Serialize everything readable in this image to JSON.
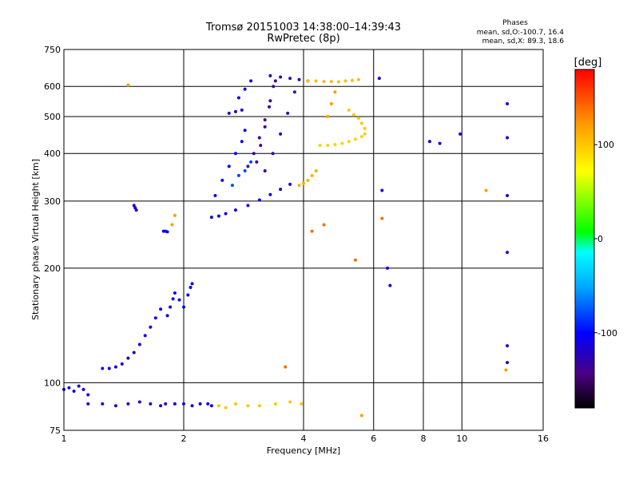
{
  "chart_data": {
    "type": "scatter",
    "title": "Tromsø 20151003 14:38:00–14:39:43",
    "subtitle": "RwPretec (8p)",
    "xlabel": "Frequency [MHz]",
    "ylabel": "Stationary phase Virtual Height [km]",
    "x_scale": "log",
    "y_scale": "log",
    "xlim": [
      1,
      16
    ],
    "ylim": [
      75,
      750
    ],
    "x_ticks": [
      1,
      2,
      4,
      6,
      8,
      10,
      16
    ],
    "x_tick_labels": [
      "1",
      "2",
      "4",
      "6",
      "8",
      "10",
      "16"
    ],
    "y_ticks": [
      75,
      100,
      200,
      300,
      400,
      500,
      600,
      750
    ],
    "y_tick_labels": [
      "75",
      "100",
      "200",
      "300",
      "400",
      "500",
      "600",
      "750"
    ],
    "grid": true,
    "stats": {
      "heading": "Phases",
      "line_o": "mean, sd,O:-100.7, 16.4",
      "line_x": "mean, sd,X: 89.3, 18.6"
    },
    "colorbar": {
      "label": "[deg]",
      "range": [
        -180,
        180
      ],
      "tick_values": [
        100,
        0,
        -100
      ],
      "tick_labels": [
        "100",
        "0",
        "-100"
      ]
    },
    "series": [
      {
        "x": [
          1.0,
          1.03,
          1.06,
          1.09,
          1.12,
          1.15
        ],
        "y": [
          96,
          97,
          95,
          98,
          96,
          93
        ],
        "phase": -110
      },
      {
        "x": [
          1.15,
          1.25,
          1.35,
          1.45,
          1.55,
          1.65,
          1.75,
          1.8
        ],
        "y": [
          88,
          88,
          87,
          88,
          89,
          88,
          87,
          88
        ],
        "phase": -115
      },
      {
        "x": [
          1.9,
          2.0,
          2.1,
          2.2,
          2.3,
          2.35
        ],
        "y": [
          88,
          88,
          87,
          88,
          88,
          87
        ],
        "phase": -110
      },
      {
        "x": [
          2.45,
          2.55,
          2.7,
          2.9,
          3.1,
          3.4,
          3.7,
          3.95
        ],
        "y": [
          87,
          86,
          88,
          87,
          87,
          88,
          89,
          88
        ],
        "phase": 100
      },
      {
        "x": [
          1.25,
          1.3,
          1.35,
          1.4,
          1.45,
          1.5,
          1.55,
          1.6,
          1.65,
          1.7,
          1.75
        ],
        "y": [
          109,
          109,
          110,
          112,
          116,
          120,
          126,
          133,
          140,
          148,
          156
        ],
        "phase": -110
      },
      {
        "x": [
          1.82,
          1.85,
          1.88,
          1.9,
          1.95,
          2.0,
          2.05,
          2.08,
          2.1
        ],
        "y": [
          150,
          158,
          166,
          172,
          165,
          158,
          170,
          178,
          182
        ],
        "phase": -105
      },
      {
        "x": [
          1.5,
          1.51,
          1.52
        ],
        "y": [
          292,
          288,
          284
        ],
        "phase": -110
      },
      {
        "x": [
          1.78,
          1.8,
          1.82
        ],
        "y": [
          250,
          250,
          249
        ],
        "phase": -110
      },
      {
        "x": [
          2.35,
          2.45,
          2.55,
          2.7,
          2.9,
          3.1,
          3.3,
          3.5,
          3.7
        ],
        "y": [
          272,
          274,
          278,
          284,
          292,
          302,
          312,
          322,
          332
        ],
        "phase": -110
      },
      {
        "x": [
          2.4,
          2.5,
          2.6,
          2.7,
          2.8,
          2.85
        ],
        "y": [
          310,
          340,
          370,
          400,
          430,
          460
        ],
        "phase": -105
      },
      {
        "x": [
          2.65,
          2.75,
          2.85,
          2.95
        ],
        "y": [
          330,
          350,
          360,
          380
        ],
        "phase": -80
      },
      {
        "x": [
          2.9,
          3.0,
          3.1,
          3.2,
          3.3,
          3.4
        ],
        "y": [
          370,
          400,
          440,
          490,
          550,
          620
        ],
        "phase": -135
      },
      {
        "x": [
          3.05,
          3.12,
          3.2,
          3.28,
          3.36
        ],
        "y": [
          380,
          420,
          470,
          530,
          600
        ],
        "phase": -140
      },
      {
        "x": [
          3.2,
          3.35,
          3.5,
          3.65,
          3.8
        ],
        "y": [
          360,
          400,
          450,
          510,
          580
        ],
        "phase": -130
      },
      {
        "x": [
          3.3,
          3.5,
          3.7,
          3.9,
          4.1
        ],
        "y": [
          640,
          635,
          630,
          625,
          620
        ],
        "phase": -130
      },
      {
        "x": [
          2.75,
          2.85,
          2.95
        ],
        "y": [
          560,
          590,
          620
        ],
        "phase": -115
      },
      {
        "x": [
          2.6,
          2.7,
          2.8
        ],
        "y": [
          510,
          515,
          520
        ],
        "phase": -120
      },
      {
        "x": [
          3.9,
          4.0,
          4.1,
          4.2,
          4.3
        ],
        "y": [
          330,
          334,
          340,
          350,
          360
        ],
        "phase": 110
      },
      {
        "x": [
          4.4,
          4.6,
          4.8,
          5.0,
          5.2,
          5.4,
          5.6,
          5.7
        ],
        "y": [
          420,
          420,
          422,
          425,
          430,
          436,
          443,
          450
        ],
        "phase": 95
      },
      {
        "x": [
          4.1,
          4.3,
          4.5,
          4.7,
          4.9,
          5.1,
          5.3,
          5.5
        ],
        "y": [
          620,
          620,
          618,
          618,
          617,
          620,
          622,
          625
        ],
        "phase": 105
      },
      {
        "x": [
          5.2,
          5.35,
          5.5,
          5.6,
          5.7
        ],
        "y": [
          520,
          505,
          495,
          480,
          465
        ],
        "phase": 100
      },
      {
        "x": [
          4.6,
          4.7,
          4.8
        ],
        "y": [
          500,
          540,
          580
        ],
        "phase": 120
      },
      {
        "x": [
          6.2,
          6.5,
          6.6,
          6.3
        ],
        "y": [
          630,
          200,
          180,
          320
        ],
        "phase": -110
      },
      {
        "x": [
          8.3,
          8.8,
          9.9
        ],
        "y": [
          430,
          425,
          450
        ],
        "phase": -110
      },
      {
        "x": [
          13.0,
          13.0,
          13.0,
          13.0,
          13.0,
          13.0
        ],
        "y": [
          540,
          440,
          310,
          220,
          125,
          113
        ],
        "phase": -115
      },
      {
        "x": [
          3.6,
          4.2,
          4.5,
          5.4,
          6.3
        ],
        "y": [
          110,
          250,
          260,
          210,
          270
        ],
        "phase": 140
      },
      {
        "x": [
          1.45,
          1.9,
          1.87,
          5.6,
          11.5,
          12.9
        ],
        "y": [
          605,
          275,
          260,
          82,
          320,
          108
        ],
        "phase": 120
      }
    ]
  }
}
